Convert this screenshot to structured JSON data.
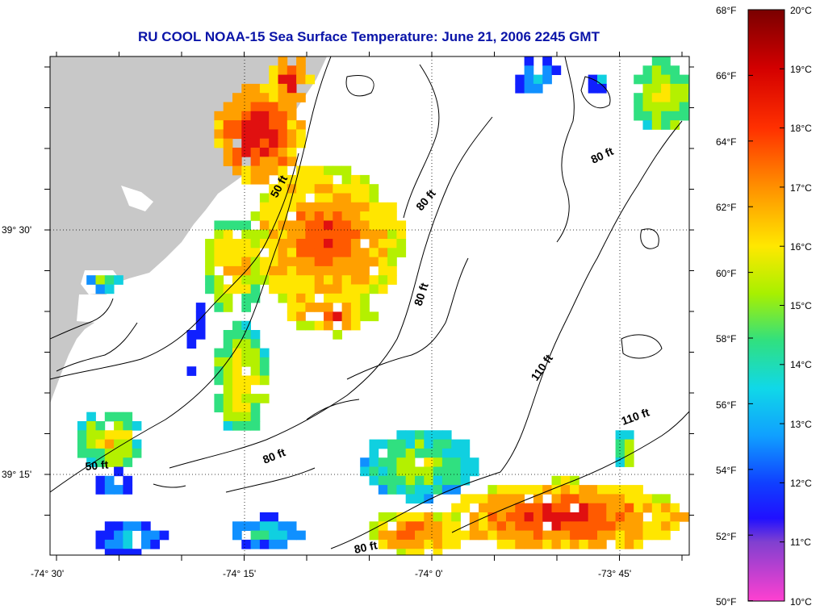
{
  "title": "RU COOL  NOAA-15  Sea Surface Temperature:  June 21, 2006 2245 GMT",
  "map": {
    "lon_ticks": [
      "-74° 30'",
      "-74° 15'",
      "-74° 0'",
      "-73° 45'"
    ],
    "lat_ticks": [
      "39° 30'",
      "39° 15'"
    ],
    "contour_labels": [
      "50 ft",
      "80 ft",
      "80 ft",
      "80 ft",
      "80 ft",
      "110 ft",
      "110 ft",
      "50 ft",
      "80 ft"
    ],
    "land_color": "#c8c8c8",
    "grid": "dotted"
  },
  "colorbar": {
    "fahrenheit_labels": [
      "68°F",
      "66°F",
      "64°F",
      "62°F",
      "60°F",
      "58°F",
      "56°F",
      "54°F",
      "52°F",
      "50°F"
    ],
    "celsius_labels": [
      "20°C",
      "19°C",
      "18°C",
      "17°C",
      "16°C",
      "15°C",
      "14°C",
      "13°C",
      "12°C",
      "11°C",
      "10°C"
    ],
    "colors": [
      "#8b0000",
      "#e01010",
      "#ff5a00",
      "#ffa000",
      "#ffe600",
      "#b4f000",
      "#30e080",
      "#10d0e0",
      "#1090ff",
      "#1020ff",
      "#7030c0",
      "#ff40c0"
    ]
  }
}
